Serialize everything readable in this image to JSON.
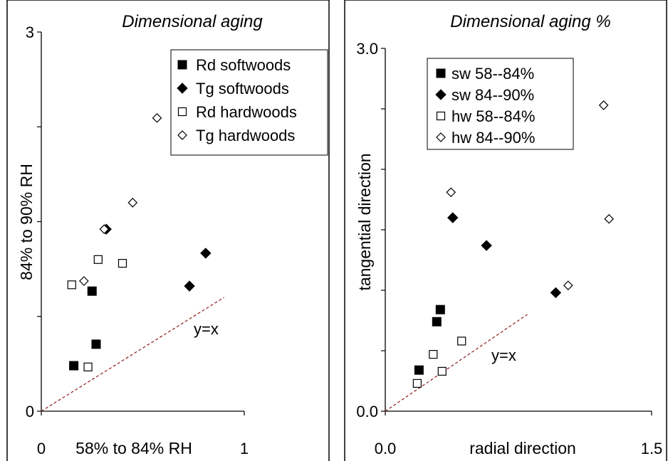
{
  "chart_data": [
    {
      "type": "scatter",
      "title": "Dimensional aging",
      "xlabel": "58% to 84% RH",
      "ylabel": "84% to 90% RH",
      "xlim": [
        0,
        1
      ],
      "ylim": [
        0,
        3
      ],
      "x_tick_labels": [
        "0",
        "1"
      ],
      "y_tick_labels": [
        "0",
        "3"
      ],
      "legend_position": "top-right",
      "reference_line": {
        "label": "y=x",
        "from": [
          0,
          0
        ],
        "to": [
          0.9,
          0.9
        ]
      },
      "series": [
        {
          "name": "Rd softwoods",
          "marker": "filled-square",
          "points": [
            [
              0.16,
              0.36
            ],
            [
              0.25,
              0.95
            ],
            [
              0.27,
              0.53
            ]
          ]
        },
        {
          "name": "Tg softwoods",
          "marker": "filled-diamond",
          "points": [
            [
              0.32,
              1.44
            ],
            [
              0.73,
              0.99
            ],
            [
              0.81,
              1.25
            ]
          ]
        },
        {
          "name": "Rd hardwoods",
          "marker": "open-square",
          "points": [
            [
              0.15,
              1.0
            ],
            [
              0.23,
              0.35
            ],
            [
              0.28,
              1.2
            ],
            [
              0.4,
              1.17
            ]
          ]
        },
        {
          "name": "Tg hardwoods",
          "marker": "open-diamond",
          "points": [
            [
              0.21,
              1.03
            ],
            [
              0.31,
              1.44
            ],
            [
              0.45,
              1.65
            ],
            [
              0.57,
              2.32
            ]
          ]
        }
      ]
    },
    {
      "type": "scatter",
      "title": "Dimensional aging %",
      "xlabel": "radial direction",
      "ylabel": "tangential direction",
      "xlim": [
        0,
        1.5
      ],
      "ylim": [
        0,
        3
      ],
      "x_tick_labels": [
        "0.0",
        "1.5"
      ],
      "y_tick_labels": [
        "0.0",
        "3.0"
      ],
      "legend_position": "top-left",
      "reference_line": {
        "label": "y=x",
        "from": [
          0,
          0
        ],
        "to": [
          0.8,
          0.8
        ]
      },
      "series": [
        {
          "name": "sw 58--84%",
          "marker": "filled-square",
          "points": [
            [
              0.19,
              0.34
            ],
            [
              0.29,
              0.74
            ],
            [
              0.31,
              0.84
            ]
          ]
        },
        {
          "name": "sw 84--90%",
          "marker": "filled-diamond",
          "points": [
            [
              0.38,
              1.6
            ],
            [
              0.57,
              1.37
            ],
            [
              0.96,
              0.98
            ]
          ]
        },
        {
          "name": "hw 58--84%",
          "marker": "open-square",
          "points": [
            [
              0.18,
              0.23
            ],
            [
              0.27,
              0.47
            ],
            [
              0.32,
              0.33
            ],
            [
              0.43,
              0.58
            ]
          ]
        },
        {
          "name": "hw 84--90%",
          "marker": "open-diamond",
          "points": [
            [
              0.37,
              1.81
            ],
            [
              1.03,
              1.04
            ],
            [
              1.23,
              2.53
            ],
            [
              1.26,
              1.59
            ]
          ]
        }
      ]
    }
  ]
}
